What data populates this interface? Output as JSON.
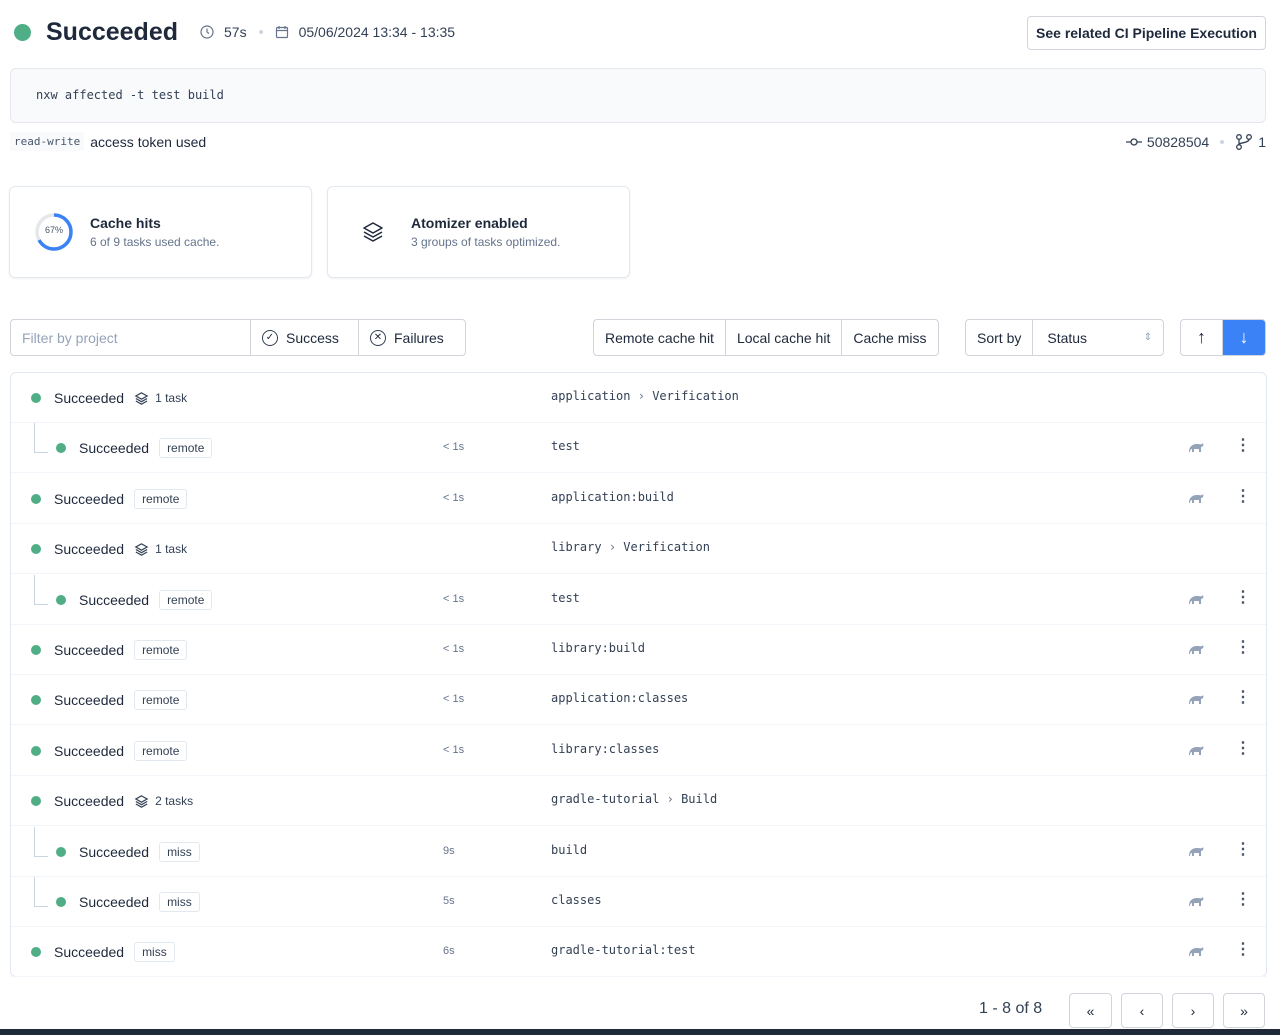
{
  "header": {
    "status": "Succeeded",
    "duration": "57s",
    "date_range": "05/06/2024 13:34 - 13:35",
    "related_button": "See related CI Pipeline Execution",
    "status_color": "#4fae85"
  },
  "command": "nxw affected -t test build",
  "token": {
    "code": "read-write",
    "text": "access token used"
  },
  "commit": {
    "sha": "50828504",
    "branches": "1"
  },
  "cards": {
    "cache": {
      "percent": "67%",
      "value": 0.67,
      "title": "Cache hits",
      "subtitle": "6 of 9 tasks used cache."
    },
    "atomizer": {
      "title": "Atomizer enabled",
      "subtitle": "3 groups of tasks optimized."
    }
  },
  "filters": {
    "placeholder": "Filter by project",
    "success": "Success",
    "failures": "Failures",
    "remote": "Remote cache hit",
    "local": "Local cache hit",
    "miss": "Cache miss",
    "sort_label": "Sort by",
    "sort_value": "Status"
  },
  "rows": [
    {
      "status": "Succeeded",
      "group": true,
      "count": "1 task",
      "project": "application",
      "target": "Verification"
    },
    {
      "status": "Succeeded",
      "child": true,
      "cache": "remote",
      "duration": "< 1s",
      "task": "test"
    },
    {
      "status": "Succeeded",
      "cache": "remote",
      "duration": "< 1s",
      "task": "application:build"
    },
    {
      "status": "Succeeded",
      "group": true,
      "count": "1 task",
      "project": "library",
      "target": "Verification"
    },
    {
      "status": "Succeeded",
      "child": true,
      "cache": "remote",
      "duration": "< 1s",
      "task": "test"
    },
    {
      "status": "Succeeded",
      "cache": "remote",
      "duration": "< 1s",
      "task": "library:build"
    },
    {
      "status": "Succeeded",
      "cache": "remote",
      "duration": "< 1s",
      "task": "application:classes"
    },
    {
      "status": "Succeeded",
      "cache": "remote",
      "duration": "< 1s",
      "task": "library:classes"
    },
    {
      "status": "Succeeded",
      "group": true,
      "count": "2 tasks",
      "project": "gradle-tutorial",
      "target": "Build"
    },
    {
      "status": "Succeeded",
      "child": true,
      "cache": "miss",
      "duration": "9s",
      "task": "build"
    },
    {
      "status": "Succeeded",
      "child": true,
      "cache": "miss",
      "duration": "5s",
      "task": "classes"
    },
    {
      "status": "Succeeded",
      "cache": "miss",
      "duration": "6s",
      "task": "gradle-tutorial:test"
    }
  ],
  "pagination": {
    "label": "1 - 8 of 8"
  }
}
